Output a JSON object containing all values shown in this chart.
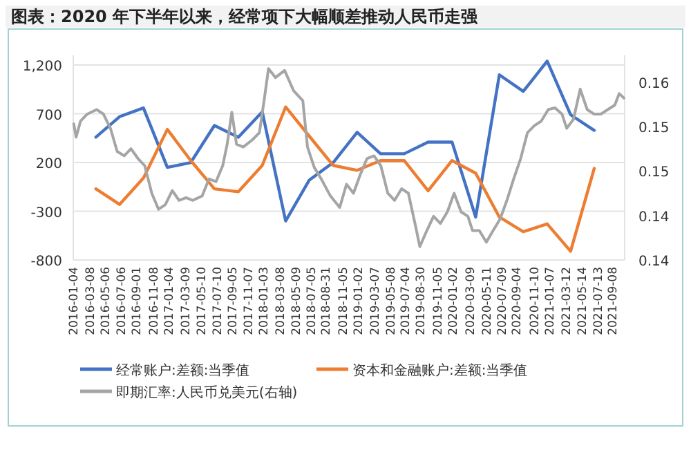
{
  "chart_data": {
    "type": "line",
    "title": "图表：2020 年下半年以来，经常项下大幅顺差推动人民币走强",
    "xlim": [
      "2016-01-04",
      "2021-10-25"
    ],
    "xticks": [
      "2016-01-04",
      "2016-03-08",
      "2016-05-06",
      "2016-07-06",
      "2016-09-01",
      "2016-11-08",
      "2017-01-04",
      "2017-03-09",
      "2017-05-10",
      "2017-07-10",
      "2017-09-05",
      "2017-11-07",
      "2018-01-03",
      "2018-03-08",
      "2018-05-09",
      "2018-07-05",
      "2018-08-31",
      "2018-11-05",
      "2019-01-02",
      "2019-03-07",
      "2019-05-08",
      "2019-07-04",
      "2019-08-30",
      "2019-11-05",
      "2020-01-02",
      "2020-03-09",
      "2020-05-11",
      "2020-07-09",
      "2020-09-04",
      "2020-11-10",
      "2021-01-07",
      "2021-03-12",
      "2021-05-14",
      "2021-07-13",
      "2021-09-08"
    ],
    "ylim": [
      -800,
      1300
    ],
    "yticks": [
      -800,
      -300,
      200,
      700,
      {
        "value": 1200,
        "label": "1,200"
      }
    ],
    "y2lim": [
      0.14,
      0.163
    ],
    "y2ticks": [
      {
        "value": 0.14,
        "label": "0.14"
      },
      {
        "value": 0.145,
        "label": "0.14"
      },
      {
        "value": 0.15,
        "label": "0.15"
      },
      {
        "value": 0.155,
        "label": "0.15"
      },
      {
        "value": 0.16,
        "label": "0.16"
      }
    ],
    "grid": "y",
    "legend": "bottom",
    "marker": "none",
    "line_style": "solid",
    "series": [
      {
        "name": "经常账户:差额:当季值",
        "color": "#4472c4",
        "x": [
          "2016-03-31",
          "2016-06-30",
          "2016-09-30",
          "2016-12-31",
          "2017-03-31",
          "2017-06-30",
          "2017-09-30",
          "2017-12-31",
          "2018-03-31",
          "2018-06-30",
          "2018-09-30",
          "2018-12-31",
          "2019-03-31",
          "2019-06-30",
          "2019-09-30",
          "2019-12-31",
          "2020-03-31",
          "2020-06-30",
          "2020-09-30",
          "2020-12-31",
          "2021-03-31",
          "2021-06-30"
        ],
        "values": [
          460,
          670,
          760,
          150,
          200,
          580,
          460,
          720,
          -400,
          20,
          200,
          510,
          290,
          290,
          410,
          410,
          -360,
          1100,
          930,
          1240,
          690,
          530
        ]
      },
      {
        "name": "资本和金融账户:差额:当季值",
        "color": "#ed7d31",
        "x": [
          "2016-03-31",
          "2016-06-30",
          "2016-09-30",
          "2016-12-31",
          "2017-03-31",
          "2017-06-30",
          "2017-09-30",
          "2017-12-31",
          "2018-03-31",
          "2018-06-30",
          "2018-09-30",
          "2018-12-31",
          "2019-03-31",
          "2019-06-30",
          "2019-09-30",
          "2019-12-31",
          "2020-03-31",
          "2020-06-30",
          "2020-09-30",
          "2020-12-31",
          "2021-03-31",
          "2021-06-30"
        ],
        "values": [
          -70,
          -230,
          40,
          540,
          220,
          -70,
          -100,
          170,
          770,
          470,
          170,
          120,
          220,
          220,
          -90,
          220,
          90,
          -360,
          -510,
          -430,
          -710,
          140
        ]
      },
      {
        "name": "即期汇率:人民币兑美元(右轴)",
        "color": "#a5a5a5",
        "axis": "y2",
        "x": [
          "2016-01-06",
          "2016-01-15",
          "2016-02-01",
          "2016-02-27",
          "2016-04-03",
          "2016-04-29",
          "2016-05-26",
          "2016-06-21",
          "2016-07-18",
          "2016-08-13",
          "2016-09-09",
          "2016-10-05",
          "2016-11-01",
          "2016-11-27",
          "2016-12-23",
          "2017-01-19",
          "2017-02-14",
          "2017-03-13",
          "2017-04-08",
          "2017-05-14",
          "2017-06-09",
          "2017-07-06",
          "2017-08-01",
          "2017-08-18",
          "2017-09-05",
          "2017-09-23",
          "2017-10-19",
          "2017-11-23",
          "2017-12-20",
          "2018-01-07",
          "2018-01-24",
          "2018-02-20",
          "2018-03-27",
          "2018-05-01",
          "2018-06-05",
          "2018-06-23",
          "2018-07-19",
          "2018-08-15",
          "2018-09-19",
          "2018-10-25",
          "2018-11-20",
          "2018-12-17",
          "2019-01-12",
          "2019-02-07",
          "2019-03-06",
          "2019-04-01",
          "2019-04-28",
          "2019-05-24",
          "2019-06-20",
          "2019-07-16",
          "2019-08-12",
          "2019-08-29",
          "2019-09-25",
          "2019-10-21",
          "2019-11-16",
          "2019-12-13",
          "2020-01-08",
          "2020-02-04",
          "2020-03-01",
          "2020-03-19",
          "2020-04-14",
          "2020-05-11",
          "2020-06-06",
          "2020-07-03",
          "2020-07-29",
          "2020-08-24",
          "2020-09-20",
          "2020-10-16",
          "2020-11-12",
          "2020-12-08",
          "2021-01-04",
          "2021-01-30",
          "2021-02-26",
          "2021-03-16",
          "2021-04-11",
          "2021-05-07",
          "2021-06-03",
          "2021-06-29",
          "2021-07-26",
          "2021-08-21",
          "2021-09-17",
          "2021-10-04",
          "2021-10-22"
        ],
        "values": [
          0.1553,
          0.1538,
          0.1556,
          0.1564,
          0.1569,
          0.1564,
          0.1548,
          0.1522,
          0.1517,
          0.1525,
          0.1514,
          0.1506,
          0.1475,
          0.1457,
          0.1462,
          0.1478,
          0.1467,
          0.147,
          0.1467,
          0.1472,
          0.1491,
          0.1488,
          0.1506,
          0.153,
          0.1566,
          0.153,
          0.1527,
          0.1535,
          0.1543,
          0.1579,
          0.1615,
          0.1605,
          0.1613,
          0.159,
          0.1579,
          0.1527,
          0.1504,
          0.1491,
          0.1472,
          0.1459,
          0.1485,
          0.1475,
          0.1496,
          0.1514,
          0.1517,
          0.1506,
          0.1475,
          0.1467,
          0.148,
          0.1475,
          0.1439,
          0.1415,
          0.1433,
          0.1449,
          0.1441,
          0.1454,
          0.1475,
          0.1454,
          0.1449,
          0.1433,
          0.1433,
          0.142,
          0.1433,
          0.1446,
          0.1467,
          0.1491,
          0.1514,
          0.1543,
          0.1551,
          0.1556,
          0.1569,
          0.1571,
          0.1564,
          0.1548,
          0.1558,
          0.1592,
          0.1569,
          0.1564,
          0.1564,
          0.1569,
          0.1574,
          0.1587,
          0.1582
        ]
      }
    ]
  }
}
